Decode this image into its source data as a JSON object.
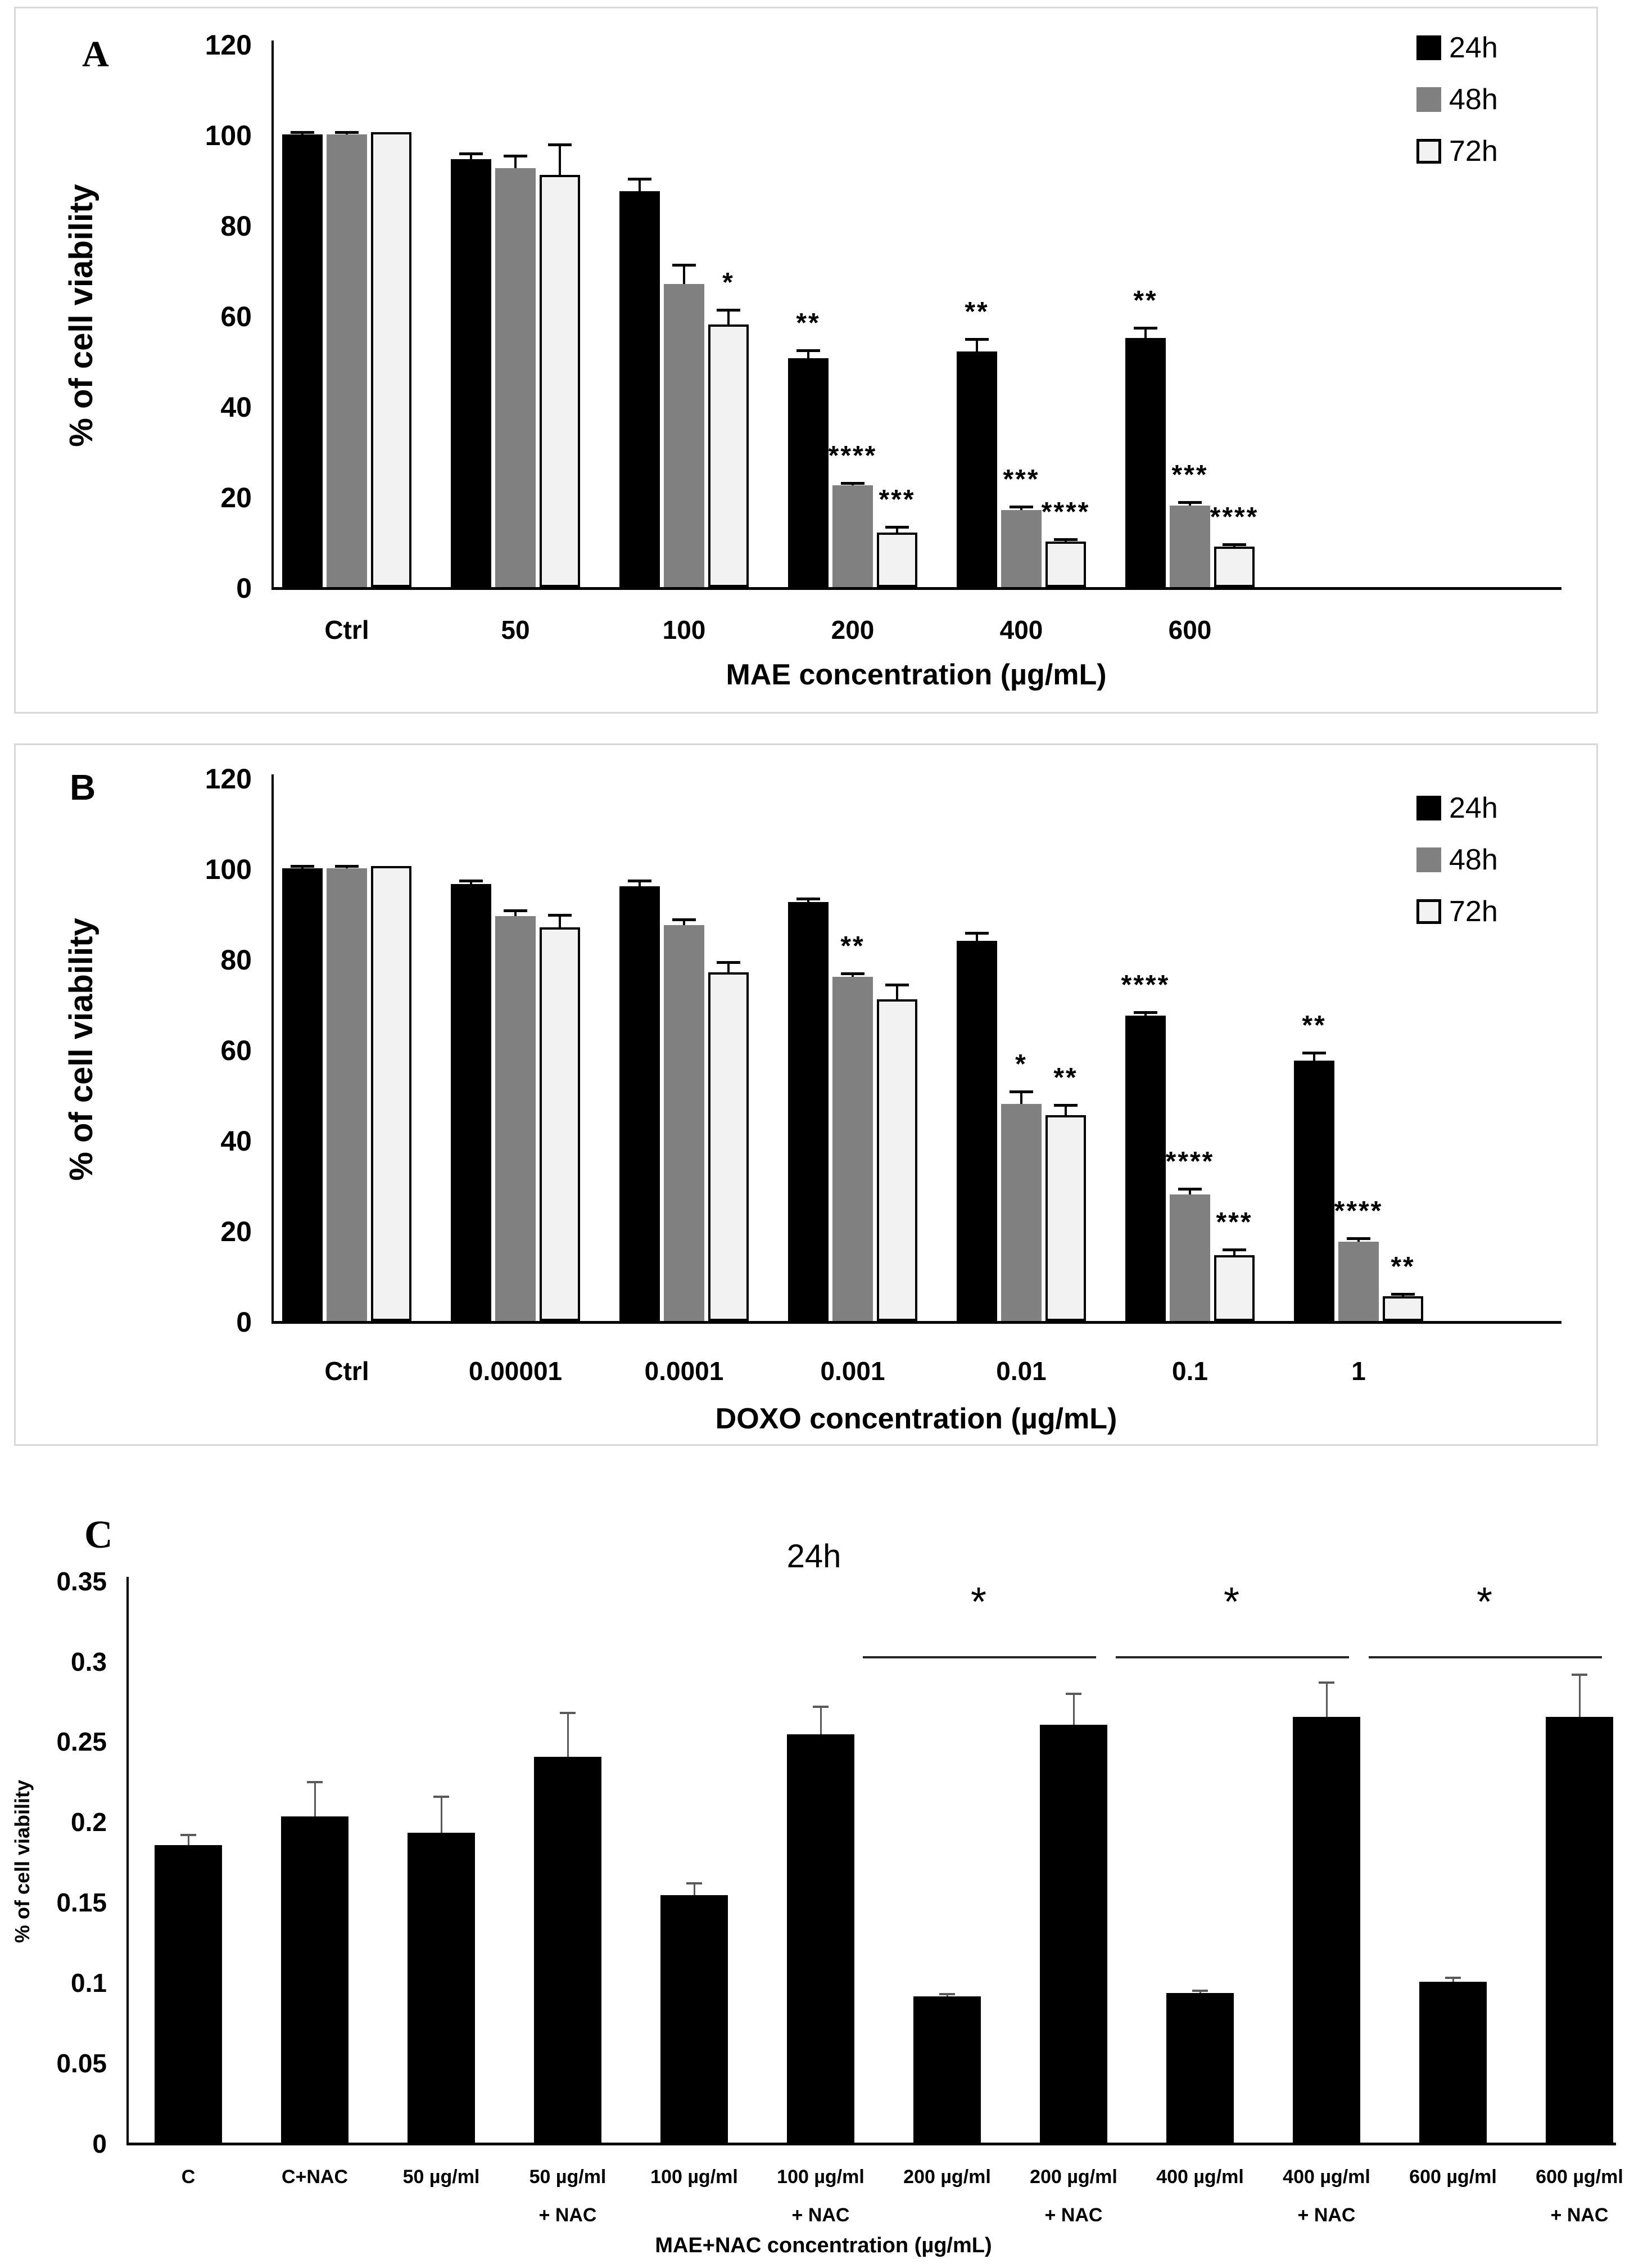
{
  "chart_data": [
    {
      "type": "bar",
      "panel_label": "A",
      "title": "",
      "xlabel": "MAE concentration (µg/mL)",
      "ylabel": "% of cell viability",
      "ylim": [
        0,
        120
      ],
      "yticks": [
        0,
        20,
        40,
        60,
        80,
        100,
        120
      ],
      "grid": false,
      "legend_position": "top-right",
      "categories": [
        {
          "label": "Ctrl",
          "sub": ""
        },
        {
          "label": "50",
          "sub": ""
        },
        {
          "label": "100",
          "sub": ""
        },
        {
          "label": "200",
          "sub": ""
        },
        {
          "label": "400",
          "sub": ""
        },
        {
          "label": "600",
          "sub": ""
        }
      ],
      "series": [
        {
          "name": "24h",
          "color": "#000000",
          "outlined": false,
          "values": [
            100,
            94.5,
            87.5,
            50.5,
            52,
            55
          ],
          "errors": [
            0.7,
            1.5,
            3,
            2,
            3,
            2.5
          ],
          "significance": [
            "",
            "",
            "",
            "**",
            "**",
            "**"
          ]
        },
        {
          "name": "48h",
          "color": "#808080",
          "outlined": false,
          "values": [
            100,
            92.5,
            67,
            22.5,
            17,
            18
          ],
          "errors": [
            0.7,
            3,
            4.5,
            0.7,
            1,
            1
          ],
          "significance": [
            "",
            "",
            "",
            "****",
            "***",
            "***"
          ]
        },
        {
          "name": "72h",
          "color": "#f2f2f2",
          "outlined": true,
          "values": [
            100.5,
            91,
            58,
            12,
            10,
            9
          ],
          "errors": [
            0,
            7,
            3.5,
            1.5,
            0.7,
            0.7
          ],
          "significance": [
            "",
            "",
            "*",
            "***",
            "****",
            "****"
          ]
        }
      ]
    },
    {
      "type": "bar",
      "panel_label": "B",
      "title": "",
      "xlabel": "DOXO concentration (µg/mL)",
      "ylabel": "% of cell viability",
      "ylim": [
        0,
        120
      ],
      "yticks": [
        0,
        20,
        40,
        60,
        80,
        100,
        120
      ],
      "grid": false,
      "legend_position": "top-right",
      "categories": [
        {
          "label": "Ctrl",
          "sub": ""
        },
        {
          "label": "0.00001",
          "sub": ""
        },
        {
          "label": "0.0001",
          "sub": ""
        },
        {
          "label": "0.001",
          "sub": ""
        },
        {
          "label": "0.01",
          "sub": ""
        },
        {
          "label": "0.1",
          "sub": ""
        },
        {
          "label": "1",
          "sub": ""
        }
      ],
      "series": [
        {
          "name": "24h",
          "color": "#000000",
          "outlined": false,
          "values": [
            100,
            96.5,
            96,
            92.5,
            84,
            67.5,
            57.5
          ],
          "errors": [
            0.7,
            1,
            1.5,
            1,
            2,
            1,
            2
          ],
          "significance": [
            "",
            "",
            "",
            "",
            "",
            "****",
            "**"
          ]
        },
        {
          "name": "48h",
          "color": "#808080",
          "outlined": false,
          "values": [
            100,
            89.5,
            87.5,
            76,
            48,
            28,
            17.5
          ],
          "errors": [
            0.7,
            1.5,
            1.5,
            1,
            3,
            1.5,
            1
          ],
          "significance": [
            "",
            "",
            "",
            "**",
            "*",
            "****",
            "****"
          ]
        },
        {
          "name": "72h",
          "color": "#f2f2f2",
          "outlined": true,
          "values": [
            100.5,
            87,
            77,
            71,
            45.5,
            14.5,
            5.5
          ],
          "errors": [
            0,
            3,
            2.5,
            3.5,
            2.5,
            1.5,
            0.7
          ],
          "significance": [
            "",
            "",
            "",
            "",
            "**",
            "***",
            "**"
          ]
        }
      ]
    },
    {
      "type": "bar",
      "panel_label": "C",
      "title": "24h",
      "xlabel": "MAE+NAC concentration (µg/mL)",
      "ylabel": "% of cell viability",
      "ylim": [
        0,
        0.35
      ],
      "yticks": [
        0,
        0.05,
        0.1,
        0.15,
        0.2,
        0.25,
        0.3,
        0.35
      ],
      "grid": false,
      "legend_position": "none",
      "categories": [
        {
          "label": "C",
          "sub": ""
        },
        {
          "label": "C+NAC",
          "sub": ""
        },
        {
          "label": "50 µg/ml",
          "sub": ""
        },
        {
          "label": "50 µg/ml",
          "sub": "+ NAC"
        },
        {
          "label": "100 µg/ml",
          "sub": ""
        },
        {
          "label": "100 µg/ml",
          "sub": "+ NAC"
        },
        {
          "label": "200 µg/ml",
          "sub": ""
        },
        {
          "label": "200 µg/ml",
          "sub": "+ NAC"
        },
        {
          "label": "400 µg/ml",
          "sub": ""
        },
        {
          "label": "400 µg/ml",
          "sub": "+ NAC"
        },
        {
          "label": "600 µg/ml",
          "sub": ""
        },
        {
          "label": "600 µg/ml",
          "sub": "+ NAC"
        }
      ],
      "series": [
        {
          "name": "24h",
          "color": "#000000",
          "outlined": false,
          "values": [
            0.185,
            0.203,
            0.193,
            0.24,
            0.154,
            0.254,
            0.091,
            0.26,
            0.093,
            0.265,
            0.1,
            0.265
          ],
          "errors": [
            0.007,
            0.022,
            0.023,
            0.028,
            0.008,
            0.018,
            0.002,
            0.02,
            0.002,
            0.022,
            0.003,
            0.027
          ],
          "significance": [
            "",
            "",
            "",
            "",
            "",
            "",
            "",
            "",
            "",
            "",
            "",
            ""
          ]
        }
      ],
      "significance_brackets": [
        {
          "label": "*",
          "from": 6,
          "to": 7
        },
        {
          "label": "*",
          "from": 8,
          "to": 9
        },
        {
          "label": "*",
          "from": 10,
          "to": 11
        }
      ]
    }
  ]
}
